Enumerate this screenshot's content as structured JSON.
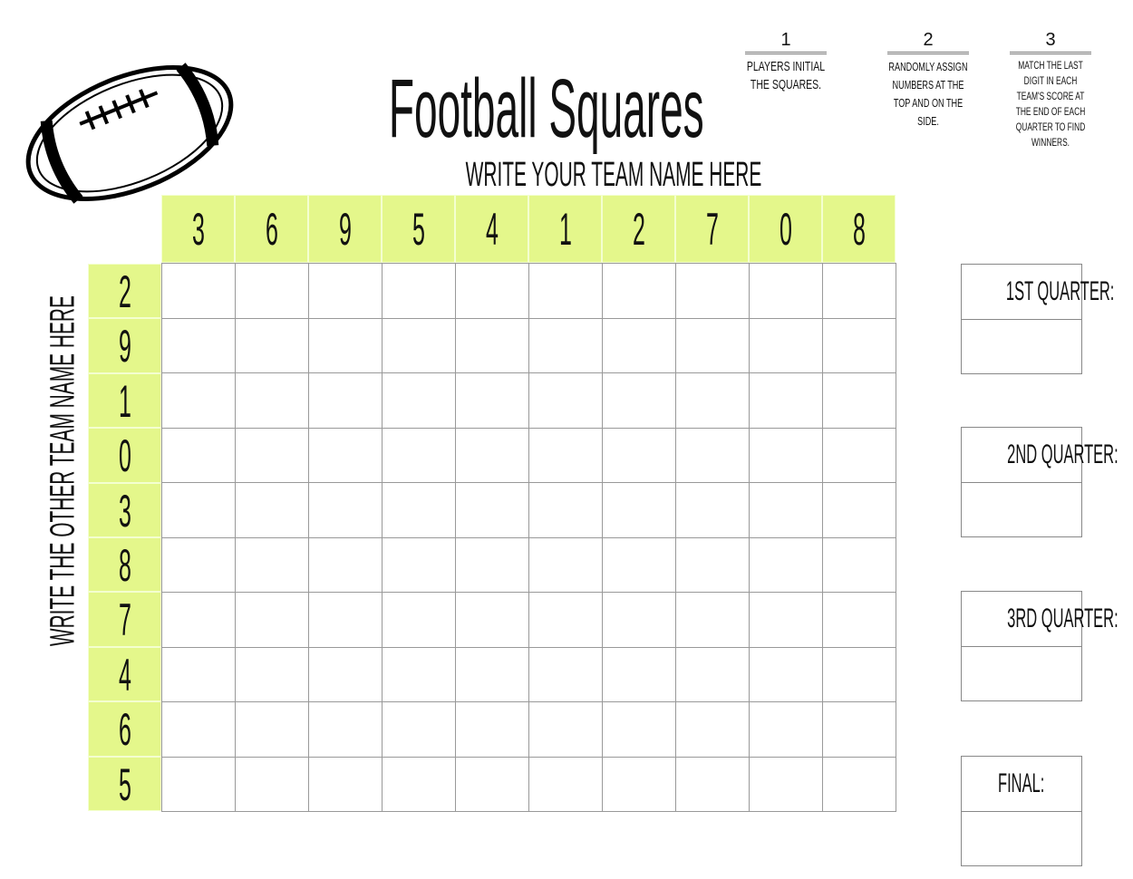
{
  "title": "Football Squares",
  "team_top_label": "Write your team name here",
  "team_side_label": "Write the other team name here",
  "steps": [
    {
      "number": "1",
      "text": "Players initial the squares."
    },
    {
      "number": "2",
      "text": "Randomly assign numbers at the top and on the side."
    },
    {
      "number": "3",
      "text": "Match the last digit in each team's score at the end of each quarter to find winners."
    }
  ],
  "column_numbers": [
    "3",
    "6",
    "9",
    "5",
    "4",
    "1",
    "2",
    "7",
    "0",
    "8"
  ],
  "row_numbers": [
    "2",
    "9",
    "1",
    "0",
    "3",
    "8",
    "7",
    "4",
    "6",
    "5"
  ],
  "quarters": [
    {
      "label": "1st Quarter:"
    },
    {
      "label": "2nd Quarter:"
    },
    {
      "label": "3rd Quarter:"
    },
    {
      "label": "Final:"
    }
  ],
  "colors": {
    "header_fill": "#e4f78b",
    "grid_line": "#999999"
  },
  "icons": {
    "logo": "football-icon"
  }
}
